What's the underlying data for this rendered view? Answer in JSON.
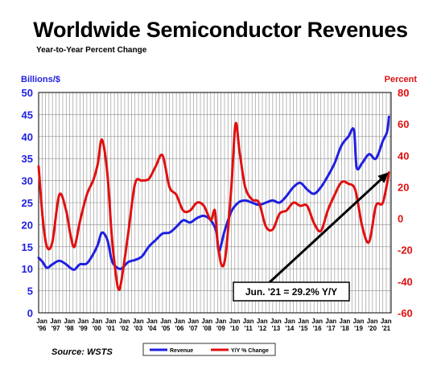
{
  "chart_data": {
    "type": "line",
    "title": "Worldwide Semiconductor Revenues",
    "subtitle": "Year-to-Year Percent Change",
    "source": "Source: WSTS",
    "ylabel_left": "Billions/$",
    "ylabel_right": "Percent",
    "left_axis": {
      "min": 0,
      "max": 50,
      "step": 5
    },
    "right_axis": {
      "min": -60,
      "max": 80,
      "step": 20
    },
    "x_tick_labels": [
      [
        "Jan",
        "'96"
      ],
      [
        "Jan",
        "'97"
      ],
      [
        "Jan",
        "'98"
      ],
      [
        "Jan",
        "'99"
      ],
      [
        "Jan",
        "'00"
      ],
      [
        "Jan",
        "'01"
      ],
      [
        "Jan",
        "'02"
      ],
      [
        "Jan",
        "'03"
      ],
      [
        "Jan",
        "'04"
      ],
      [
        "Jan",
        "'05"
      ],
      [
        "Jan",
        "'06"
      ],
      [
        "Jan",
        "'07"
      ],
      [
        "Jan",
        "'08"
      ],
      [
        "Jan",
        "'09"
      ],
      [
        "Jan",
        "'10"
      ],
      [
        "Jan",
        "'11"
      ],
      [
        "Jan",
        "'12"
      ],
      [
        "Jan",
        "'13"
      ],
      [
        "Jan",
        "'14"
      ],
      [
        "Jan",
        "'15"
      ],
      [
        "Jan",
        "'16"
      ],
      [
        "Jan",
        "'17"
      ],
      [
        "Jan",
        "'18"
      ],
      [
        "Jan",
        "'19"
      ],
      [
        "Jan",
        "'20"
      ],
      [
        "Jan",
        "'21"
      ]
    ],
    "x_range": [
      1996.0,
      2021.6
    ],
    "grid": true,
    "legend_position": "bottom",
    "annotation": {
      "text": "Jun. '21 = 29.2% Y/Y",
      "target": [
        2021.42,
        29.2
      ]
    },
    "colors": {
      "revenue": "#1f1fe0",
      "yoy": "#e01010",
      "left_axis": "#1f1fe0",
      "right_axis": "#e01010"
    },
    "series": [
      {
        "name": "Revenue",
        "axis": "left",
        "x": [
          1996.0,
          1996.3,
          1996.6,
          1997.0,
          1997.5,
          1998.0,
          1998.3,
          1998.6,
          1999.0,
          1999.5,
          2000.0,
          2000.3,
          2000.6,
          2001.0,
          2001.3,
          2001.6,
          2002.0,
          2002.5,
          2003.0,
          2003.5,
          2004.0,
          2004.5,
          2005.0,
          2005.5,
          2006.0,
          2006.5,
          2007.0,
          2007.5,
          2008.0,
          2008.5,
          2008.9,
          2009.1,
          2009.5,
          2010.0,
          2010.5,
          2011.0,
          2011.5,
          2012.0,
          2012.5,
          2013.0,
          2013.5,
          2014.0,
          2014.5,
          2015.0,
          2015.5,
          2016.0,
          2016.5,
          2017.0,
          2017.5,
          2018.0,
          2018.5,
          2018.9,
          2019.1,
          2019.5,
          2020.0,
          2020.5,
          2021.0,
          2021.3,
          2021.45
        ],
        "values": [
          12.5,
          11.5,
          10.2,
          11.0,
          11.8,
          11.0,
          10.2,
          9.8,
          11.0,
          11.2,
          13.5,
          15.5,
          18.2,
          16.5,
          12.0,
          10.5,
          10.0,
          11.5,
          12.0,
          12.8,
          15.0,
          16.5,
          18.0,
          18.2,
          19.5,
          21.0,
          20.5,
          21.5,
          22.0,
          21.0,
          18.5,
          14.0,
          18.5,
          23.0,
          25.0,
          25.5,
          25.0,
          24.5,
          25.0,
          25.5,
          25.0,
          26.5,
          28.5,
          29.5,
          28.0,
          27.0,
          28.5,
          31.0,
          34.0,
          38.0,
          40.0,
          41.5,
          33.0,
          34.0,
          36.0,
          35.0,
          39.0,
          41.0,
          44.5
        ]
      },
      {
        "name": "Y/Y % Change",
        "axis": "right",
        "x": [
          1996.0,
          1996.3,
          1996.6,
          1997.0,
          1997.5,
          1998.0,
          1998.3,
          1998.6,
          1999.0,
          1999.5,
          2000.0,
          2000.3,
          2000.6,
          2001.0,
          2001.3,
          2001.6,
          2001.8,
          2002.0,
          2002.5,
          2003.0,
          2003.5,
          2004.0,
          2004.5,
          2005.0,
          2005.5,
          2006.0,
          2006.5,
          2007.0,
          2007.5,
          2008.0,
          2008.5,
          2008.8,
          2009.0,
          2009.3,
          2009.6,
          2010.0,
          2010.3,
          2010.6,
          2011.0,
          2011.5,
          2012.0,
          2012.5,
          2013.0,
          2013.5,
          2014.0,
          2014.5,
          2015.0,
          2015.5,
          2016.0,
          2016.5,
          2017.0,
          2017.5,
          2018.0,
          2018.5,
          2019.0,
          2019.5,
          2020.0,
          2020.5,
          2021.0,
          2021.45
        ],
        "values": [
          33,
          0,
          -18,
          -15,
          15,
          5,
          -10,
          -18,
          -2,
          15,
          25,
          35,
          50,
          28,
          -10,
          -35,
          -45,
          -40,
          -10,
          22,
          24,
          25,
          33,
          40,
          20,
          15,
          5,
          5,
          10,
          8,
          -1,
          5,
          -15,
          -30,
          -22,
          20,
          60,
          42,
          20,
          12,
          10,
          -5,
          -7,
          3,
          5,
          10,
          8,
          8,
          -3,
          -8,
          5,
          15,
          23,
          22,
          18,
          -5,
          -15,
          8,
          10,
          29.2
        ]
      }
    ]
  },
  "legend": {
    "items": [
      {
        "label": "Revenue",
        "color": "#1f1fe0"
      },
      {
        "label": "Y/Y % Change",
        "color": "#e01010"
      }
    ]
  }
}
